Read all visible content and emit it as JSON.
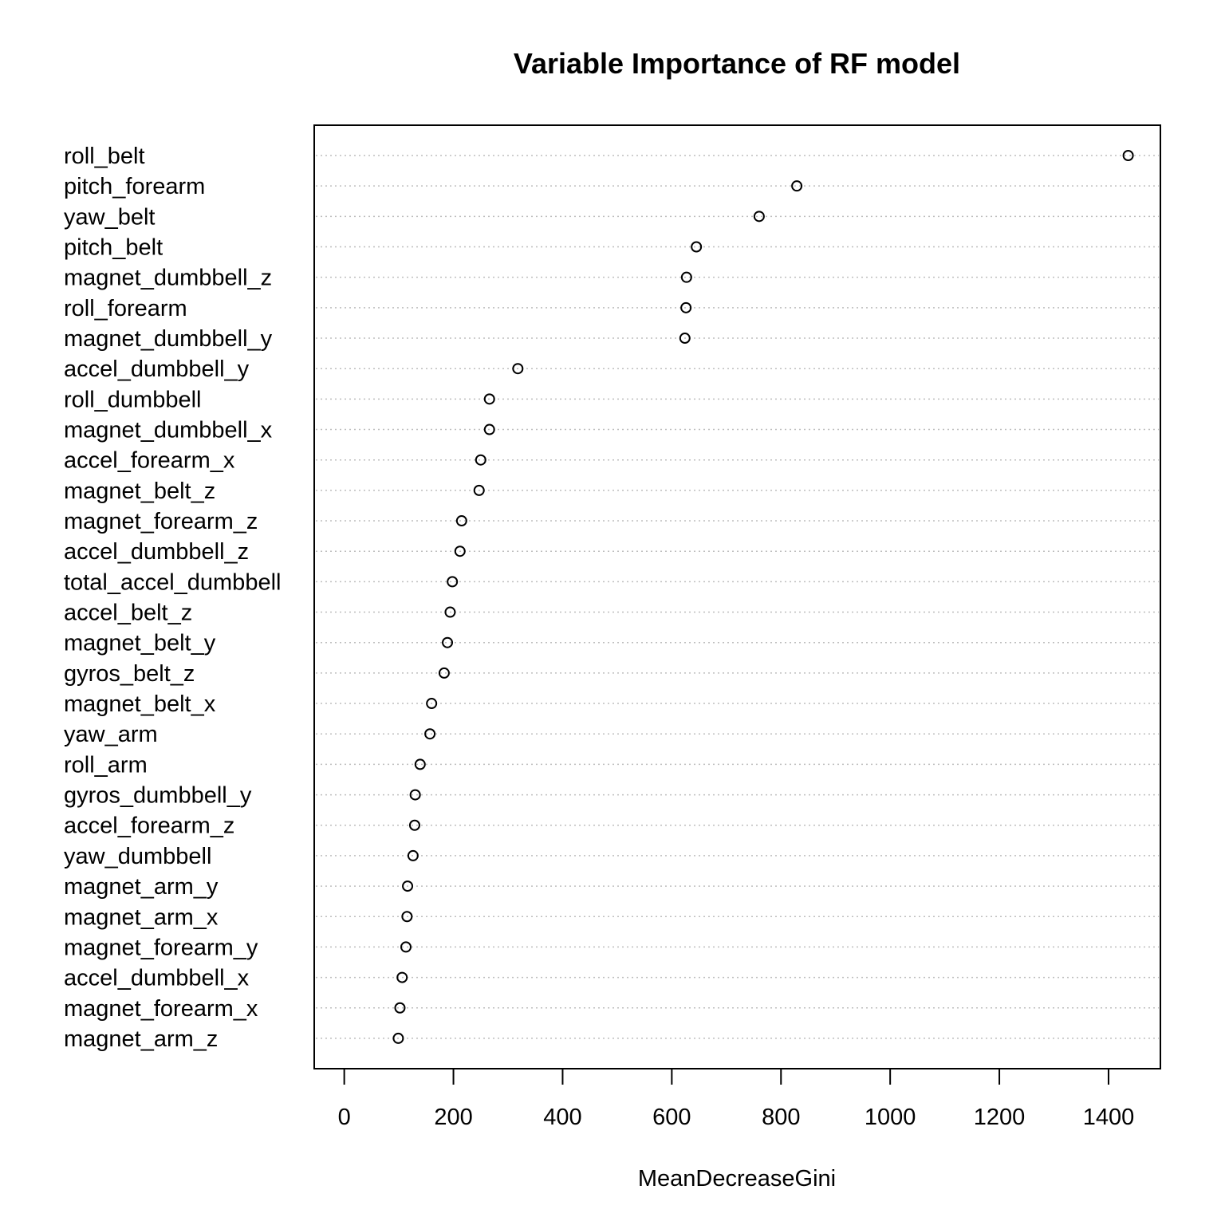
{
  "chart_data": {
    "type": "scatter",
    "title": "Variable Importance of RF model",
    "xlabel": "MeanDecreaseGini",
    "ylabel": "",
    "xlim": [
      -55,
      1495
    ],
    "xticks": [
      0,
      200,
      400,
      600,
      800,
      1000,
      1200,
      1400
    ],
    "grid": "horizontal dotted",
    "marker": "open circle",
    "categories": [
      "roll_belt",
      "pitch_forearm",
      "yaw_belt",
      "pitch_belt",
      "magnet_dumbbell_z",
      "roll_forearm",
      "magnet_dumbbell_y",
      "accel_dumbbell_y",
      "roll_dumbbell",
      "magnet_dumbbell_x",
      "accel_forearm_x",
      "magnet_belt_z",
      "magnet_forearm_z",
      "accel_dumbbell_z",
      "total_accel_dumbbell",
      "accel_belt_z",
      "magnet_belt_y",
      "gyros_belt_z",
      "magnet_belt_x",
      "yaw_arm",
      "roll_arm",
      "gyros_dumbbell_y",
      "accel_forearm_z",
      "yaw_dumbbell",
      "magnet_arm_y",
      "magnet_arm_x",
      "magnet_forearm_y",
      "accel_dumbbell_x",
      "magnet_forearm_x",
      "magnet_arm_z"
    ],
    "values": [
      1436,
      829,
      760,
      645,
      627,
      626,
      624,
      318,
      266,
      266,
      250,
      247,
      215,
      212,
      198,
      194,
      189,
      183,
      160,
      157,
      139,
      130,
      129,
      126,
      116,
      115,
      113,
      106,
      102,
      99
    ]
  }
}
